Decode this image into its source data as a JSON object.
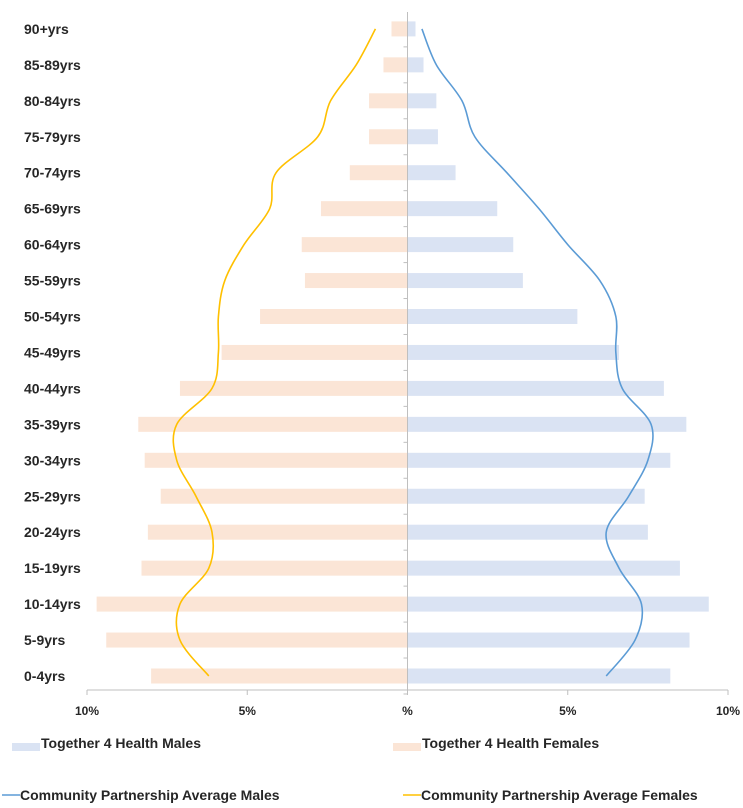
{
  "chart_data": {
    "type": "bar",
    "orientation": "horizontal-population-pyramid",
    "categories": [
      "0-4yrs",
      "5-9yrs",
      "10-14yrs",
      "15-19yrs",
      "20-24yrs",
      "25-29yrs",
      "30-34yrs",
      "35-39yrs",
      "40-44yrs",
      "45-49yrs",
      "50-54yrs",
      "55-59yrs",
      "60-64yrs",
      "65-69yrs",
      "70-74yrs",
      "75-79yrs",
      "80-84yrs",
      "85-89yrs",
      "90+yrs"
    ],
    "x_tick_labels": [
      "10%",
      "5%",
      "%",
      "5%",
      "10%"
    ],
    "x_ticks": [
      -10,
      -5,
      0,
      5,
      10
    ],
    "xlim": [
      -10,
      10
    ],
    "grid": false,
    "legend_position": "bottom",
    "series": [
      {
        "name": "Together 4 Health Males",
        "kind": "bar",
        "side": "right",
        "color": "#dae3f3",
        "values": [
          8.2,
          8.8,
          9.4,
          8.5,
          7.5,
          7.4,
          8.2,
          8.7,
          8.0,
          6.6,
          5.3,
          3.6,
          3.3,
          2.8,
          1.5,
          0.95,
          0.9,
          0.5,
          0.25
        ]
      },
      {
        "name": "Together 4 Health Females",
        "kind": "bar",
        "side": "left",
        "color": "#fbe5d6",
        "values": [
          8.0,
          9.4,
          9.7,
          8.3,
          8.1,
          7.7,
          8.2,
          8.4,
          7.1,
          5.8,
          4.6,
          3.2,
          3.3,
          2.7,
          1.8,
          1.2,
          1.2,
          0.75,
          0.5
        ]
      },
      {
        "name": "Community Partnership Average Males",
        "kind": "line",
        "side": "right",
        "color": "#5b9bd5",
        "values": [
          6.2,
          7.1,
          7.3,
          6.6,
          6.2,
          6.9,
          7.5,
          7.6,
          6.7,
          6.5,
          6.5,
          6.0,
          5.0,
          4.1,
          3.1,
          2.1,
          1.7,
          0.9,
          0.45
        ]
      },
      {
        "name": "Community Partnership Average Females",
        "kind": "line",
        "side": "left",
        "color": "#ffc000",
        "values": [
          6.2,
          7.1,
          7.1,
          6.2,
          6.1,
          6.6,
          7.2,
          7.2,
          6.1,
          5.9,
          5.9,
          5.7,
          5.1,
          4.3,
          4.1,
          2.8,
          2.4,
          1.6,
          1.0
        ]
      }
    ]
  }
}
